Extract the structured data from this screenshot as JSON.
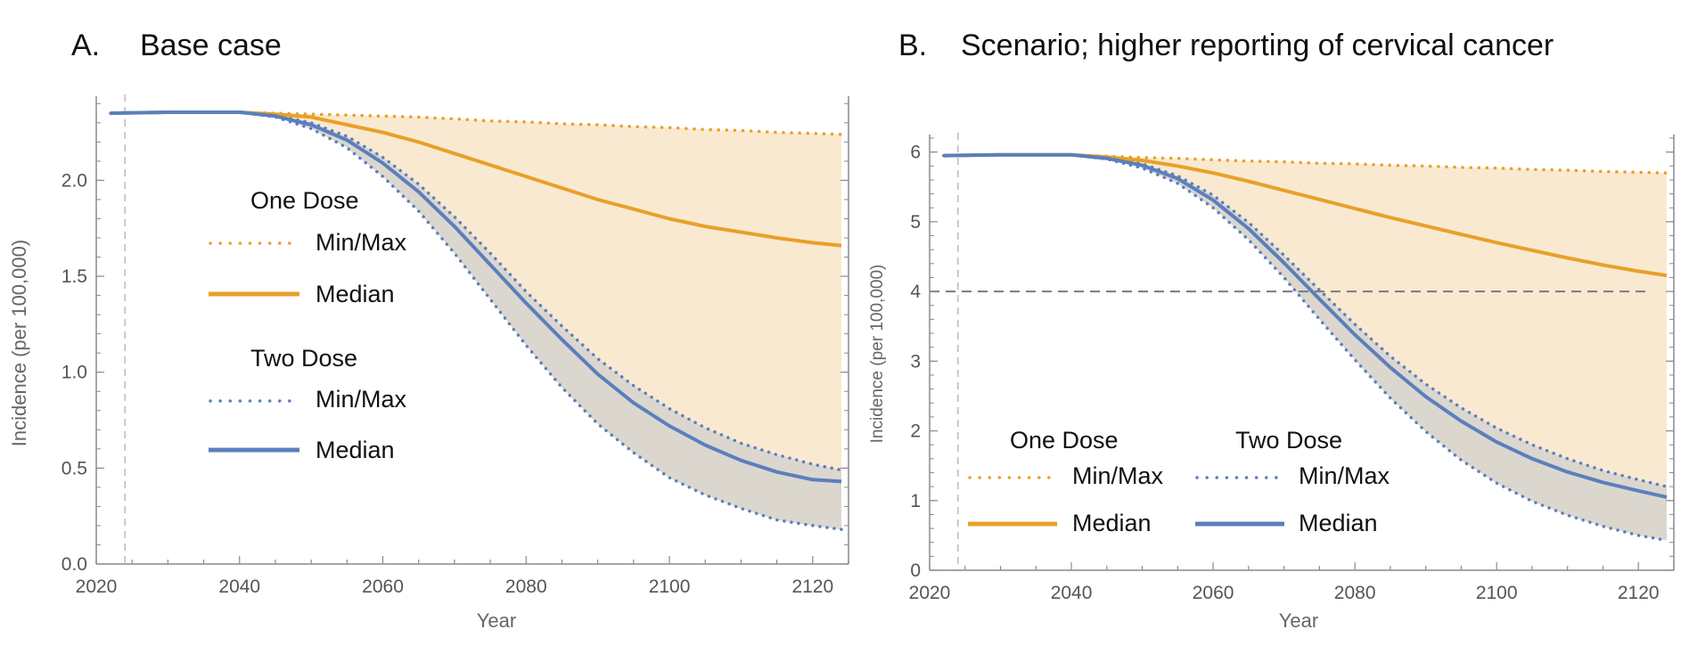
{
  "colors": {
    "one_dose": "#e8a028",
    "two_dose": "#5b7fbc",
    "one_dose_band": "#fae9d1",
    "two_dose_band": "#dbd7cf",
    "axis": "#8a8a8a",
    "threshold": "#7a7a7a",
    "start_line": "#bbbbbb"
  },
  "chart_data": [
    {
      "type": "line",
      "title": "Base case",
      "panel_letter": "A.",
      "xlabel": "Year",
      "ylabel": "Incidence (per 100,000)",
      "xlim": [
        2020,
        2125
      ],
      "ylim": [
        0,
        2.42
      ],
      "xticks": [
        2020,
        2040,
        2060,
        2080,
        2100,
        2120
      ],
      "yticks": [
        0.0,
        0.5,
        1.0,
        1.5,
        2.0
      ],
      "ytick_labels": [
        "0.0",
        "0.5",
        "1.0",
        "1.5",
        "2.0"
      ],
      "start_marker_year": 2024,
      "x": [
        2022,
        2030,
        2040,
        2045,
        2050,
        2055,
        2060,
        2065,
        2070,
        2075,
        2080,
        2085,
        2090,
        2095,
        2100,
        2105,
        2110,
        2115,
        2120,
        2124
      ],
      "series": [
        {
          "name": "One Dose Max",
          "group": "One Dose",
          "stat": "max",
          "values": [
            2.35,
            2.355,
            2.355,
            2.35,
            2.345,
            2.34,
            2.335,
            2.33,
            2.32,
            2.31,
            2.305,
            2.295,
            2.29,
            2.28,
            2.275,
            2.265,
            2.26,
            2.25,
            2.245,
            2.24
          ]
        },
        {
          "name": "One Dose Median",
          "group": "One Dose",
          "stat": "median",
          "values": [
            2.35,
            2.355,
            2.355,
            2.345,
            2.33,
            2.29,
            2.25,
            2.2,
            2.14,
            2.08,
            2.02,
            1.96,
            1.9,
            1.85,
            1.8,
            1.76,
            1.73,
            1.7,
            1.675,
            1.66
          ]
        },
        {
          "name": "One Dose Min / Two Dose Max",
          "group": "One Dose",
          "stat": "min",
          "values": [
            2.35,
            2.355,
            2.355,
            2.34,
            2.3,
            2.23,
            2.12,
            1.98,
            1.81,
            1.62,
            1.42,
            1.24,
            1.07,
            0.93,
            0.81,
            0.71,
            0.63,
            0.57,
            0.52,
            0.49
          ]
        },
        {
          "name": "Two Dose Median",
          "group": "Two Dose",
          "stat": "median",
          "values": [
            2.35,
            2.355,
            2.355,
            2.335,
            2.29,
            2.21,
            2.09,
            1.94,
            1.76,
            1.56,
            1.36,
            1.17,
            0.99,
            0.84,
            0.72,
            0.62,
            0.54,
            0.48,
            0.44,
            0.43
          ]
        },
        {
          "name": "Two Dose Min",
          "group": "Two Dose",
          "stat": "min",
          "values": [
            2.35,
            2.355,
            2.355,
            2.33,
            2.27,
            2.17,
            2.02,
            1.84,
            1.62,
            1.38,
            1.14,
            0.92,
            0.73,
            0.58,
            0.45,
            0.36,
            0.29,
            0.23,
            0.2,
            0.18
          ]
        }
      ],
      "legend": {
        "placement": "middle-left",
        "groups": [
          {
            "heading": "One Dose",
            "entries": [
              {
                "label": "Min/Max",
                "style": "dotted"
              },
              {
                "label": "Median",
                "style": "solid"
              }
            ]
          },
          {
            "heading": "Two Dose",
            "entries": [
              {
                "label": "Min/Max",
                "style": "dotted"
              },
              {
                "label": "Median",
                "style": "solid"
              }
            ]
          }
        ]
      }
    },
    {
      "type": "line",
      "title": "Scenario; higher reporting of cervical cancer",
      "panel_letter": "B.",
      "xlabel": "Year",
      "ylabel": "Incidence (per 100,000)",
      "xlim": [
        2020,
        2125
      ],
      "ylim": [
        0,
        6.2
      ],
      "xticks": [
        2020,
        2040,
        2060,
        2080,
        2100,
        2120
      ],
      "yticks": [
        0,
        1,
        2,
        3,
        4,
        5,
        6
      ],
      "ytick_labels": [
        "0",
        "1",
        "2",
        "3",
        "4",
        "5",
        "6"
      ],
      "start_marker_year": 2024,
      "threshold": 4,
      "x": [
        2022,
        2030,
        2040,
        2045,
        2050,
        2055,
        2060,
        2065,
        2070,
        2075,
        2080,
        2085,
        2090,
        2095,
        2100,
        2105,
        2110,
        2115,
        2120,
        2124
      ],
      "series": [
        {
          "name": "One Dose Max",
          "group": "One Dose",
          "stat": "max",
          "values": [
            5.95,
            5.96,
            5.96,
            5.94,
            5.92,
            5.91,
            5.89,
            5.87,
            5.86,
            5.84,
            5.83,
            5.81,
            5.8,
            5.78,
            5.77,
            5.75,
            5.74,
            5.72,
            5.71,
            5.7
          ]
        },
        {
          "name": "One Dose Median",
          "group": "One Dose",
          "stat": "median",
          "values": [
            5.95,
            5.96,
            5.96,
            5.93,
            5.88,
            5.8,
            5.7,
            5.58,
            5.45,
            5.32,
            5.19,
            5.06,
            4.94,
            4.82,
            4.7,
            4.59,
            4.48,
            4.38,
            4.29,
            4.23
          ]
        },
        {
          "name": "One Dose Min / Two Dose Max",
          "group": "One Dose",
          "stat": "min",
          "values": [
            5.95,
            5.96,
            5.96,
            5.92,
            5.83,
            5.66,
            5.38,
            4.99,
            4.52,
            4.02,
            3.53,
            3.07,
            2.67,
            2.33,
            2.04,
            1.8,
            1.6,
            1.43,
            1.3,
            1.2
          ]
        },
        {
          "name": "Two Dose Median",
          "group": "Two Dose",
          "stat": "median",
          "values": [
            5.95,
            5.96,
            5.96,
            5.91,
            5.81,
            5.62,
            5.31,
            4.9,
            4.41,
            3.89,
            3.38,
            2.91,
            2.49,
            2.14,
            1.84,
            1.6,
            1.41,
            1.26,
            1.14,
            1.05
          ]
        },
        {
          "name": "Two Dose Min",
          "group": "Two Dose",
          "stat": "min",
          "values": [
            5.95,
            5.96,
            5.96,
            5.9,
            5.77,
            5.55,
            5.2,
            4.74,
            4.2,
            3.6,
            3.02,
            2.47,
            1.99,
            1.58,
            1.25,
            0.99,
            0.79,
            0.63,
            0.5,
            0.43
          ]
        }
      ],
      "legend": {
        "placement": "bottom-left",
        "groups": [
          {
            "heading": "One Dose",
            "entries": [
              {
                "label": "Min/Max",
                "style": "dotted"
              },
              {
                "label": "Median",
                "style": "solid"
              }
            ]
          },
          {
            "heading": "Two Dose",
            "entries": [
              {
                "label": "Min/Max",
                "style": "dotted"
              },
              {
                "label": "Median",
                "style": "solid"
              }
            ]
          }
        ]
      }
    }
  ]
}
